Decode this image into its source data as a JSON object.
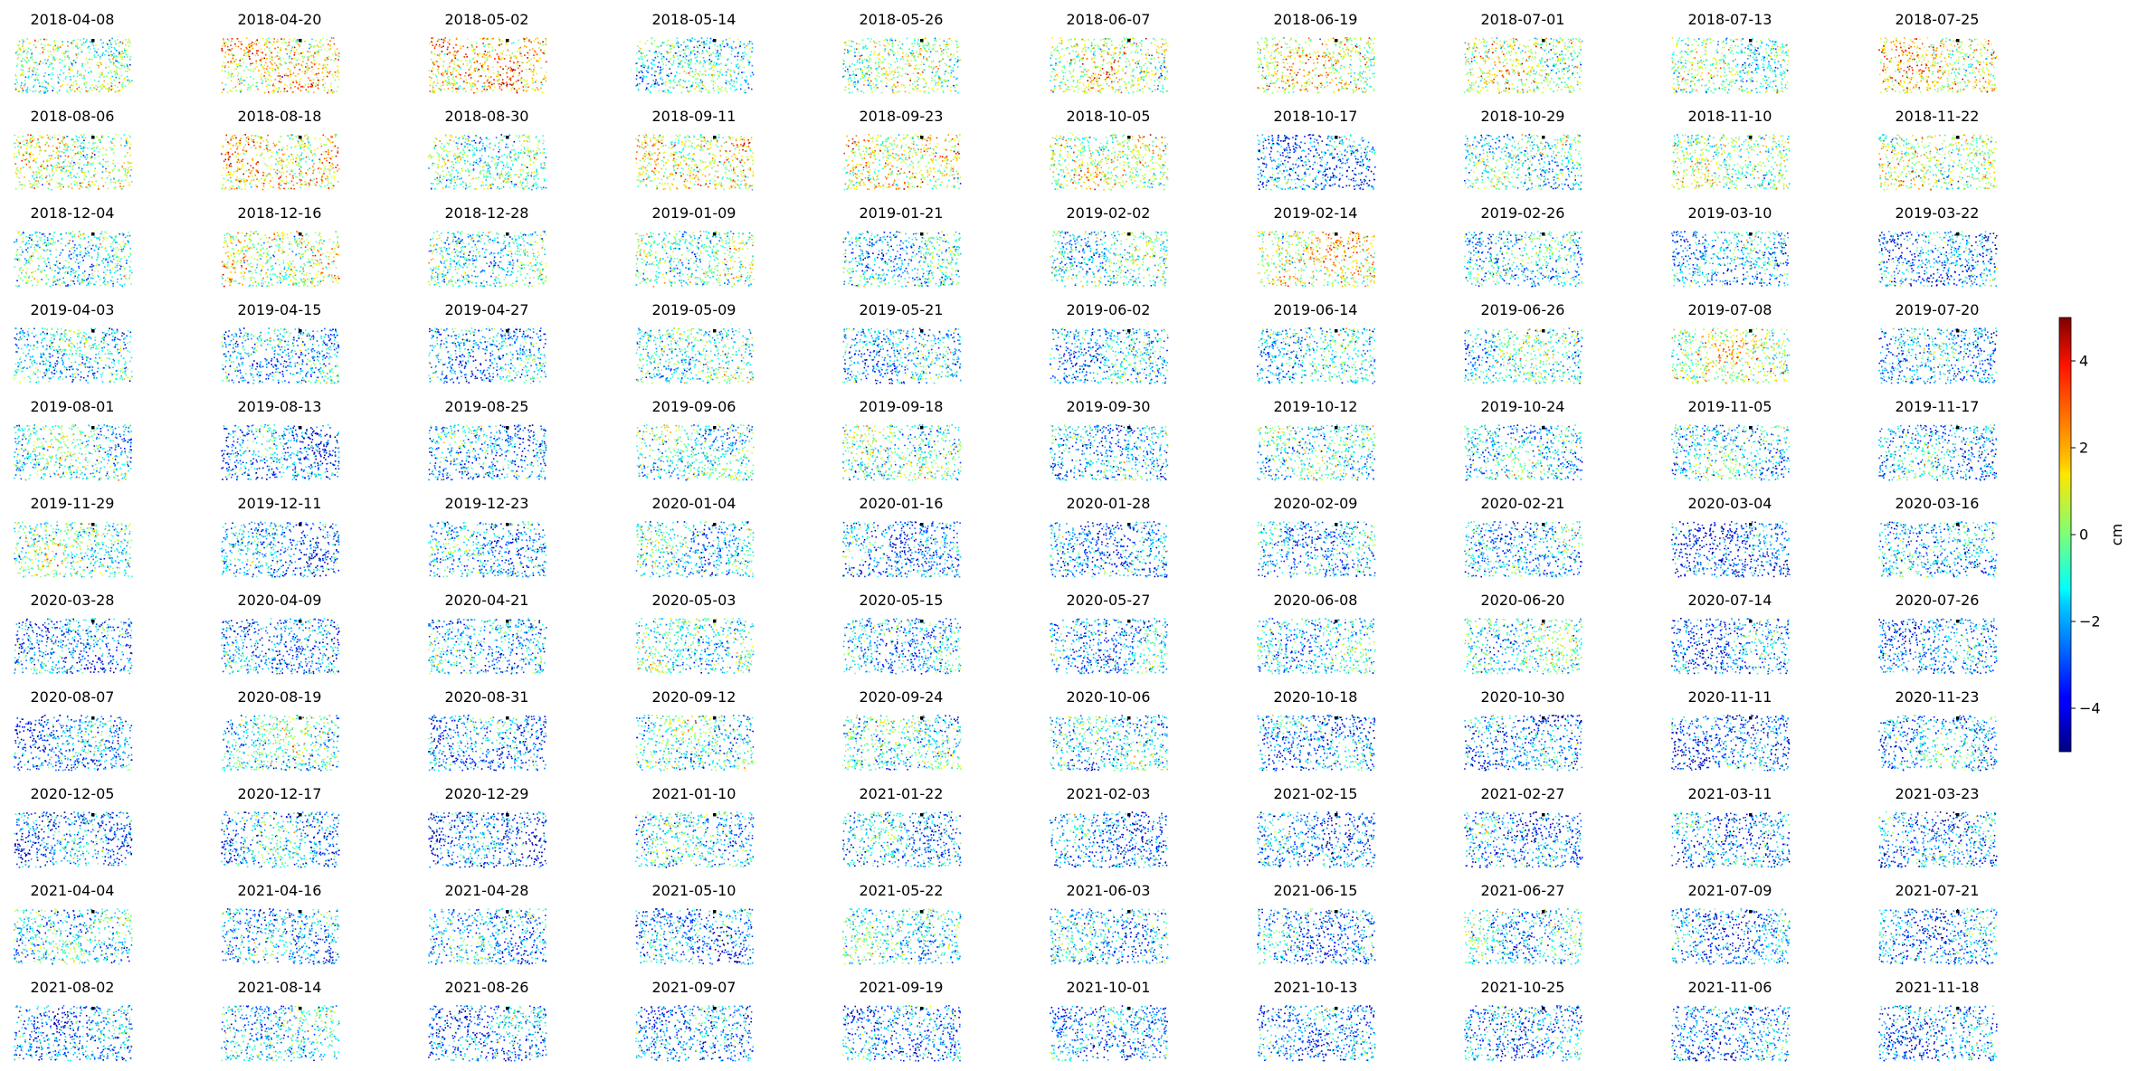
{
  "chart_data": {
    "type": "heatmap",
    "title": "",
    "grid": false,
    "panel_grid": {
      "rows": 11,
      "columns": 10
    },
    "panel_titles": [
      "2018-04-08",
      "2018-04-20",
      "2018-05-02",
      "2018-05-14",
      "2018-05-26",
      "2018-06-07",
      "2018-06-19",
      "2018-07-01",
      "2018-07-13",
      "2018-07-25",
      "2018-08-06",
      "2018-08-18",
      "2018-08-30",
      "2018-09-11",
      "2018-09-23",
      "2018-10-05",
      "2018-10-17",
      "2018-10-29",
      "2018-11-10",
      "2018-11-22",
      "2018-12-04",
      "2018-12-16",
      "2018-12-28",
      "2019-01-09",
      "2019-01-21",
      "2019-02-02",
      "2019-02-14",
      "2019-02-26",
      "2019-03-10",
      "2019-03-22",
      "2019-04-03",
      "2019-04-15",
      "2019-04-27",
      "2019-05-09",
      "2019-05-21",
      "2019-06-02",
      "2019-06-14",
      "2019-06-26",
      "2019-07-08",
      "2019-07-20",
      "2019-08-01",
      "2019-08-13",
      "2019-08-25",
      "2019-09-06",
      "2019-09-18",
      "2019-09-30",
      "2019-10-12",
      "2019-10-24",
      "2019-11-05",
      "2019-11-17",
      "2019-11-29",
      "2019-12-11",
      "2019-12-23",
      "2020-01-04",
      "2020-01-16",
      "2020-01-28",
      "2020-02-09",
      "2020-02-21",
      "2020-03-04",
      "2020-03-16",
      "2020-03-28",
      "2020-04-09",
      "2020-04-21",
      "2020-05-03",
      "2020-05-15",
      "2020-05-27",
      "2020-06-08",
      "2020-06-20",
      "2020-07-14",
      "2020-07-26",
      "2020-08-07",
      "2020-08-19",
      "2020-08-31",
      "2020-09-12",
      "2020-09-24",
      "2020-10-06",
      "2020-10-18",
      "2020-10-30",
      "2020-11-11",
      "2020-11-23",
      "2020-12-05",
      "2020-12-17",
      "2020-12-29",
      "2021-01-10",
      "2021-01-22",
      "2021-02-03",
      "2021-02-15",
      "2021-02-27",
      "2021-03-11",
      "2021-03-23",
      "2021-04-04",
      "2021-04-16",
      "2021-04-28",
      "2021-05-10",
      "2021-05-22",
      "2021-06-03",
      "2021-06-15",
      "2021-06-27",
      "2021-07-09",
      "2021-07-21",
      "2021-08-02",
      "2021-08-14",
      "2021-08-26",
      "2021-09-07",
      "2021-09-19",
      "2021-10-01",
      "2021-10-13",
      "2021-10-25",
      "2021-11-06",
      "2021-11-18"
    ],
    "panel_mean_cm": [
      0,
      1.5,
      2,
      -1,
      0,
      0.5,
      1,
      0.5,
      -0.5,
      1.5,
      0.5,
      1.5,
      -0.5,
      1,
      1,
      0.5,
      -2.5,
      -1,
      0,
      0.5,
      -1,
      0.5,
      -1,
      -0.5,
      -1.5,
      -1,
      1,
      -1.5,
      -2,
      -2.5,
      -1.5,
      -2,
      -2,
      -1,
      -2,
      -2,
      -1.5,
      -1,
      0.5,
      -2,
      -1,
      -2.5,
      -2,
      -1,
      -0.5,
      -2,
      -1,
      -1.5,
      -1.5,
      -2,
      -0.5,
      -2.5,
      -2,
      -1.5,
      -2.5,
      -2.5,
      -2,
      -2,
      -3,
      -2,
      -2.5,
      -2.5,
      -2,
      -1,
      -2,
      -2,
      -1.5,
      -1,
      -2.5,
      -2.5,
      -2.5,
      -1,
      -2.5,
      -1,
      -1,
      -1.5,
      -2.5,
      -2.5,
      -3,
      -2,
      -2.5,
      -2,
      -3,
      -1.5,
      -2,
      -2.5,
      -2.5,
      -2.5,
      -2.5,
      -2.5,
      -1.5,
      -2,
      -2,
      -2.5,
      -1,
      -2,
      -2.5,
      -1.5,
      -2.5,
      -2.5,
      -2.5,
      -1.5,
      -2.5,
      -2.5,
      -2.5,
      -2.5,
      -2.5,
      -2.5,
      -2.5,
      -2.5
    ],
    "colorbar": {
      "label": "cm",
      "colormap": "jet",
      "range": [
        -5,
        5
      ],
      "ticks": [
        -4,
        -2,
        0,
        2,
        4
      ],
      "tick_labels": [
        "−4",
        "−2",
        "0",
        "2",
        "4"
      ]
    },
    "colors": {
      "reference_marker": "#000000"
    }
  }
}
